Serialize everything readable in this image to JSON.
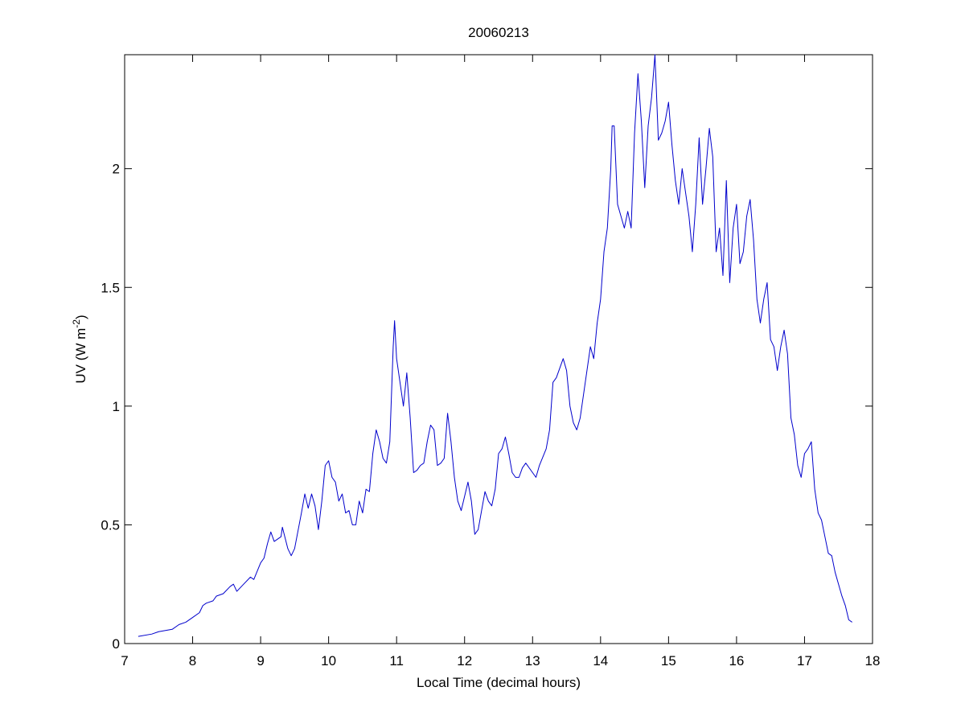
{
  "chart_data": {
    "type": "line",
    "title": "20060213",
    "xlabel": "Local Time (decimal hours)",
    "ylabel": "UV (W m",
    "ylabel_sup": "-2",
    "ylabel_end": ")",
    "xlim": [
      7,
      18
    ],
    "xticks": [
      7,
      8,
      9,
      10,
      11,
      12,
      13,
      14,
      15,
      16,
      17,
      18
    ],
    "ylim": [
      0,
      2.48
    ],
    "yticks": [
      0,
      0.5,
      1,
      1.5,
      2
    ],
    "grid": false,
    "x": [
      7.2,
      7.4,
      7.5,
      7.6,
      7.7,
      7.8,
      7.9,
      8.0,
      8.1,
      8.15,
      8.2,
      8.3,
      8.35,
      8.45,
      8.55,
      8.6,
      8.65,
      8.75,
      8.85,
      8.9,
      9.0,
      9.05,
      9.1,
      9.15,
      9.2,
      9.3,
      9.32,
      9.4,
      9.45,
      9.5,
      9.6,
      9.65,
      9.7,
      9.75,
      9.8,
      9.85,
      9.9,
      9.95,
      10.0,
      10.05,
      10.1,
      10.15,
      10.2,
      10.25,
      10.3,
      10.35,
      10.4,
      10.45,
      10.5,
      10.55,
      10.6,
      10.65,
      10.7,
      10.75,
      10.8,
      10.85,
      10.9,
      10.95,
      10.97,
      11.0,
      11.05,
      11.1,
      11.15,
      11.2,
      11.25,
      11.3,
      11.35,
      11.4,
      11.45,
      11.5,
      11.55,
      11.6,
      11.65,
      11.7,
      11.75,
      11.8,
      11.85,
      11.9,
      11.95,
      12.0,
      12.05,
      12.1,
      12.15,
      12.2,
      12.25,
      12.3,
      12.35,
      12.4,
      12.45,
      12.5,
      12.55,
      12.6,
      12.65,
      12.7,
      12.75,
      12.8,
      12.85,
      12.9,
      13.0,
      13.05,
      13.1,
      13.2,
      13.25,
      13.3,
      13.35,
      13.45,
      13.5,
      13.55,
      13.6,
      13.65,
      13.7,
      13.8,
      13.85,
      13.9,
      13.95,
      14.0,
      14.05,
      14.1,
      14.15,
      14.17,
      14.2,
      14.25,
      14.3,
      14.35,
      14.4,
      14.45,
      14.5,
      14.55,
      14.6,
      14.65,
      14.7,
      14.75,
      14.8,
      14.85,
      14.9,
      14.95,
      15.0,
      15.05,
      15.1,
      15.15,
      15.2,
      15.25,
      15.3,
      15.35,
      15.4,
      15.45,
      15.5,
      15.55,
      15.6,
      15.65,
      15.7,
      15.75,
      15.8,
      15.85,
      15.9,
      15.95,
      16.0,
      16.05,
      16.1,
      16.15,
      16.2,
      16.25,
      16.3,
      16.35,
      16.4,
      16.45,
      16.5,
      16.55,
      16.6,
      16.65,
      16.7,
      16.75,
      16.8,
      16.85,
      16.9,
      16.95,
      17.0,
      17.05,
      17.1,
      17.15,
      17.2,
      17.25,
      17.3,
      17.35,
      17.4,
      17.45,
      17.5,
      17.55,
      17.6,
      17.65,
      17.7
    ],
    "series": [
      {
        "name": "UV",
        "color": "#0000cc",
        "values": [
          0.03,
          0.04,
          0.05,
          0.055,
          0.06,
          0.08,
          0.09,
          0.11,
          0.13,
          0.16,
          0.17,
          0.18,
          0.2,
          0.21,
          0.24,
          0.25,
          0.22,
          0.25,
          0.28,
          0.27,
          0.34,
          0.36,
          0.42,
          0.47,
          0.43,
          0.45,
          0.49,
          0.4,
          0.37,
          0.4,
          0.55,
          0.63,
          0.57,
          0.63,
          0.58,
          0.48,
          0.6,
          0.75,
          0.77,
          0.7,
          0.68,
          0.6,
          0.63,
          0.55,
          0.56,
          0.5,
          0.5,
          0.6,
          0.55,
          0.65,
          0.64,
          0.8,
          0.9,
          0.85,
          0.78,
          0.76,
          0.85,
          1.25,
          1.36,
          1.2,
          1.1,
          1.0,
          1.14,
          0.95,
          0.72,
          0.73,
          0.75,
          0.76,
          0.85,
          0.92,
          0.9,
          0.75,
          0.76,
          0.78,
          0.97,
          0.85,
          0.7,
          0.6,
          0.56,
          0.62,
          0.68,
          0.6,
          0.46,
          0.48,
          0.56,
          0.64,
          0.6,
          0.58,
          0.65,
          0.8,
          0.82,
          0.87,
          0.8,
          0.72,
          0.7,
          0.7,
          0.74,
          0.76,
          0.72,
          0.7,
          0.75,
          0.82,
          0.9,
          1.1,
          1.12,
          1.2,
          1.15,
          1.0,
          0.93,
          0.9,
          0.95,
          1.15,
          1.25,
          1.2,
          1.35,
          1.45,
          1.65,
          1.75,
          2.0,
          2.18,
          2.18,
          1.85,
          1.8,
          1.75,
          1.82,
          1.75,
          2.15,
          2.4,
          2.2,
          1.92,
          2.18,
          2.3,
          2.48,
          2.12,
          2.15,
          2.2,
          2.28,
          2.1,
          1.95,
          1.85,
          2.0,
          1.9,
          1.8,
          1.65,
          1.85,
          2.13,
          1.85,
          2.0,
          2.17,
          2.05,
          1.65,
          1.75,
          1.55,
          1.95,
          1.52,
          1.75,
          1.85,
          1.6,
          1.65,
          1.8,
          1.87,
          1.7,
          1.45,
          1.35,
          1.45,
          1.52,
          1.28,
          1.25,
          1.15,
          1.25,
          1.32,
          1.22,
          0.95,
          0.88,
          0.75,
          0.7,
          0.8,
          0.82,
          0.85,
          0.65,
          0.55,
          0.52,
          0.45,
          0.38,
          0.37,
          0.3,
          0.25,
          0.2,
          0.16,
          0.1,
          0.09
        ]
      }
    ]
  }
}
